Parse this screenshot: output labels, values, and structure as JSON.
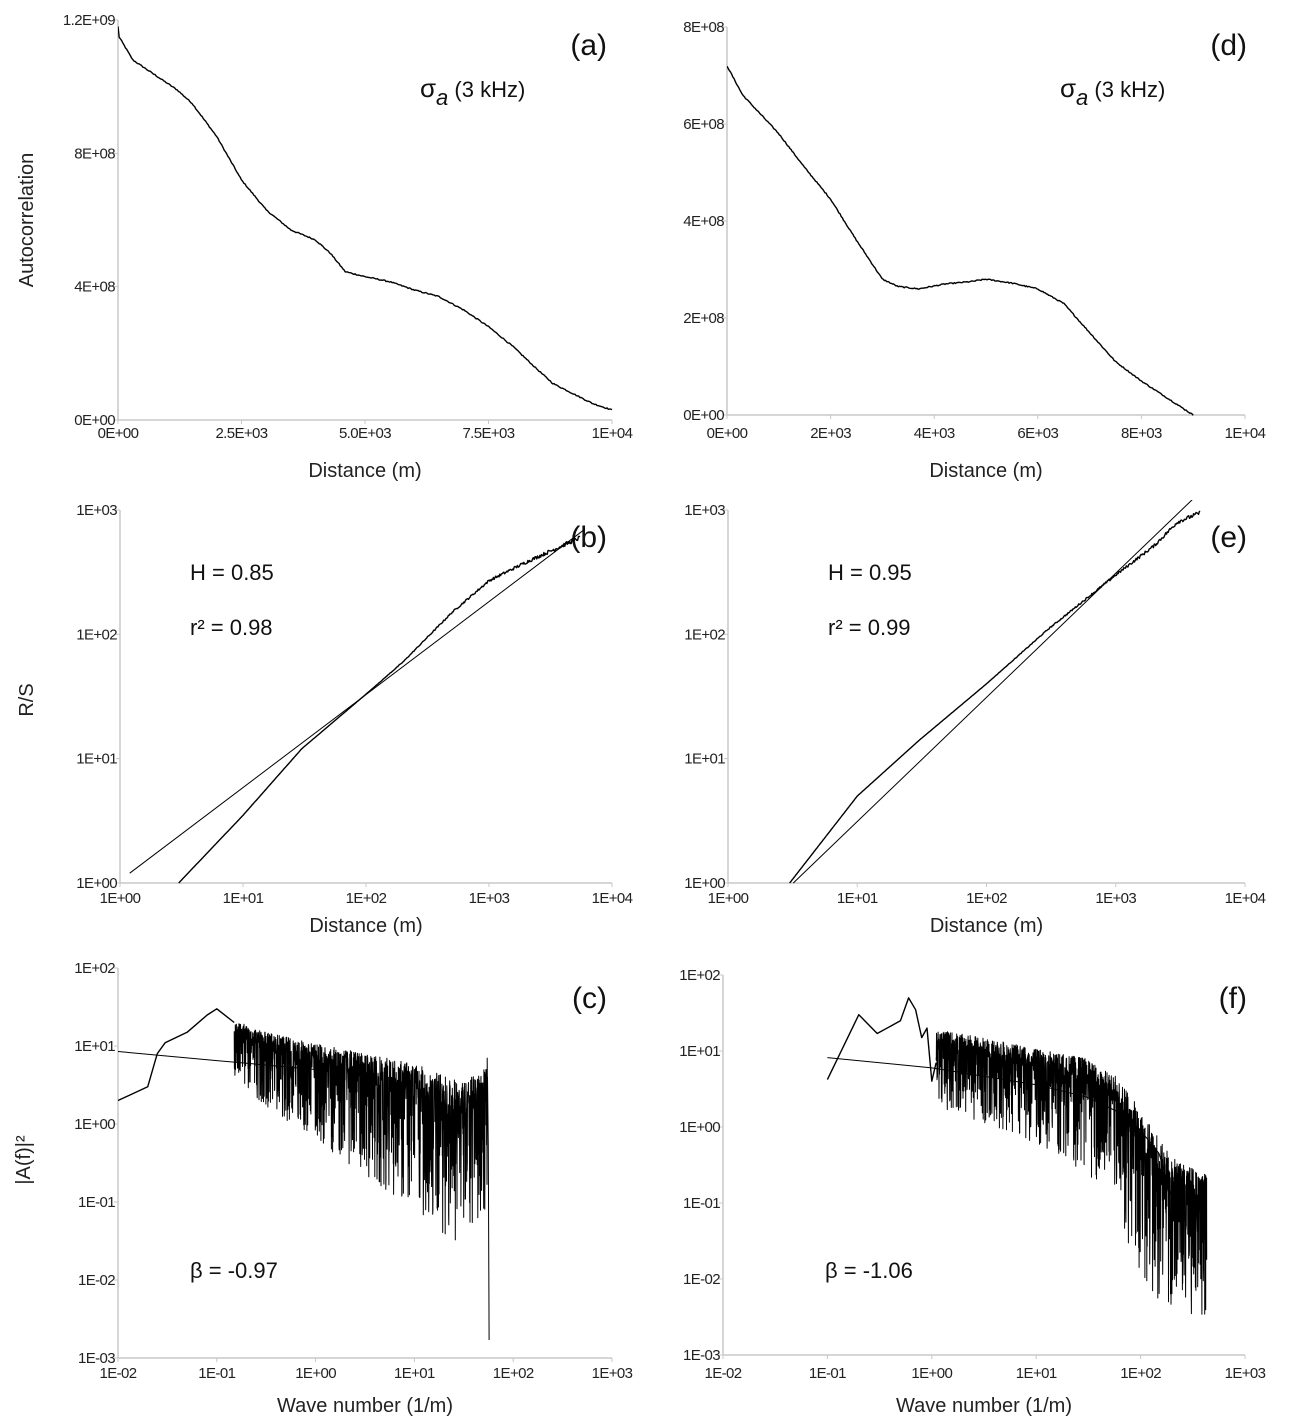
{
  "chart_data": [
    {
      "id": "a",
      "type": "line",
      "panel_label": "(a)",
      "annotation": {
        "symbol": "σ",
        "sub": "a",
        "text": " (3 kHz)"
      },
      "xlabel": "Distance (m)",
      "ylabel": "Autocorrelation",
      "xscale": "linear",
      "yscale": "linear",
      "xlim": [
        0,
        10000
      ],
      "ylim": [
        0,
        1200000000
      ],
      "xticks": [
        0,
        2500,
        5000,
        7500,
        10000
      ],
      "xtick_labels": [
        "0E+00",
        "2.5E+03",
        "5.0E+03",
        "7.5E+03",
        "1E+04"
      ],
      "yticks": [
        0,
        400000000,
        800000000,
        1200000000
      ],
      "ytick_labels": [
        "0E+00",
        "4E+08",
        "8E+08",
        "1.2E+09"
      ],
      "series": [
        {
          "name": "autocorrelation",
          "points": [
            [
              0,
              1180000000.0
            ],
            [
              20,
              1150000000.0
            ],
            [
              300,
              1080000000.0
            ],
            [
              700,
              1040000000.0
            ],
            [
              1200,
              990000000.0
            ],
            [
              1500,
              950000000.0
            ],
            [
              2000,
              850000000.0
            ],
            [
              2500,
              720000000.0
            ],
            [
              3000,
              630000000.0
            ],
            [
              3500,
              570000000.0
            ],
            [
              4000,
              540000000.0
            ],
            [
              4300,
              500000000.0
            ],
            [
              4600,
              445000000.0
            ],
            [
              5000,
              430000000.0
            ],
            [
              5500,
              415000000.0
            ],
            [
              6000,
              390000000.0
            ],
            [
              6500,
              370000000.0
            ],
            [
              7000,
              330000000.0
            ],
            [
              7500,
              280000000.0
            ],
            [
              8000,
              220000000.0
            ],
            [
              8500,
              150000000.0
            ],
            [
              8800,
              110000000.0
            ],
            [
              9200,
              80000000.0
            ],
            [
              9600,
              50000000.0
            ],
            [
              10000,
              30000000.0
            ]
          ]
        }
      ]
    },
    {
      "id": "d",
      "type": "line",
      "panel_label": "(d)",
      "annotation": {
        "symbol": "σ",
        "sub": "a",
        "text": " (3 kHz)"
      },
      "xlabel": "Distance (m)",
      "ylabel": "",
      "xscale": "linear",
      "yscale": "linear",
      "xlim": [
        0,
        10000
      ],
      "ylim": [
        0,
        800000000
      ],
      "xticks": [
        0,
        2000,
        4000,
        6000,
        8000,
        10000
      ],
      "xtick_labels": [
        "0E+00",
        "2E+03",
        "4E+03",
        "6E+03",
        "8E+03",
        "1E+04"
      ],
      "yticks": [
        0,
        200000000,
        400000000,
        600000000,
        800000000
      ],
      "ytick_labels": [
        "0E+00",
        "2E+08",
        "4E+08",
        "6E+08",
        "8E+08"
      ],
      "series": [
        {
          "name": "autocorrelation",
          "points": [
            [
              0,
              720000000.0
            ],
            [
              300,
              660000000.0
            ],
            [
              1000,
              580000000.0
            ],
            [
              1500,
              510000000.0
            ],
            [
              2000,
              445000000.0
            ],
            [
              2500,
              360000000.0
            ],
            [
              3000,
              280000000.0
            ],
            [
              3300,
              265000000.0
            ],
            [
              3700,
              260000000.0
            ],
            [
              4200,
              270000000.0
            ],
            [
              4700,
              275000000.0
            ],
            [
              5000,
              280000000.0
            ],
            [
              5500,
              272000000.0
            ],
            [
              6000,
              260000000.0
            ],
            [
              6500,
              230000000.0
            ],
            [
              7000,
              170000000.0
            ],
            [
              7500,
              110000000.0
            ],
            [
              8000,
              70000000.0
            ],
            [
              8500,
              35000000.0
            ],
            [
              9000,
              0
            ]
          ]
        }
      ]
    },
    {
      "id": "b",
      "type": "line",
      "panel_label": "(b)",
      "annotation_lines": [
        "H = 0.85",
        "r² = 0.98"
      ],
      "H": 0.85,
      "r2": 0.98,
      "xlabel": "Distance (m)",
      "ylabel": "R/S",
      "xscale": "log",
      "yscale": "log",
      "xlim": [
        1,
        10000
      ],
      "ylim": [
        1,
        1000
      ],
      "xticks": [
        1,
        10,
        100,
        1000,
        10000
      ],
      "xtick_labels": [
        "1E+00",
        "1E+01",
        "1E+02",
        "1E+03",
        "1E+04"
      ],
      "yticks": [
        1,
        10,
        100,
        1000
      ],
      "ytick_labels": [
        "1E+00",
        "1E+01",
        "1E+02",
        "1E+03"
      ],
      "series": [
        {
          "name": "R/S data",
          "jitter": true,
          "points": [
            [
              3,
              1
            ],
            [
              10,
              3.5
            ],
            [
              30,
              12
            ],
            [
              100,
              33
            ],
            [
              200,
              60
            ],
            [
              500,
              150
            ],
            [
              1000,
              270
            ],
            [
              2000,
              380
            ],
            [
              4000,
              520
            ],
            [
              5500,
              600
            ]
          ]
        },
        {
          "name": "fit",
          "points": [
            [
              1.2,
              1.2
            ],
            [
              6000,
              700
            ]
          ]
        }
      ]
    },
    {
      "id": "e",
      "type": "line",
      "panel_label": "(e)",
      "annotation_lines": [
        "H = 0.95",
        "r² = 0.99"
      ],
      "H": 0.95,
      "r2": 0.99,
      "xlabel": "Distance (m)",
      "ylabel": "",
      "xscale": "log",
      "yscale": "log",
      "xlim": [
        1,
        10000
      ],
      "ylim": [
        1,
        1000
      ],
      "xticks": [
        1,
        10,
        100,
        1000,
        10000
      ],
      "xtick_labels": [
        "1E+00",
        "1E+01",
        "1E+02",
        "1E+03",
        "1E+04"
      ],
      "yticks": [
        1,
        10,
        100,
        1000
      ],
      "ytick_labels": [
        "1E+00",
        "1E+01",
        "1E+02",
        "1E+03"
      ],
      "series": [
        {
          "name": "R/S data",
          "jitter": true,
          "points": [
            [
              3,
              1
            ],
            [
              10,
              5
            ],
            [
              30,
              14
            ],
            [
              100,
              40
            ],
            [
              300,
              110
            ],
            [
              1000,
              300
            ],
            [
              2000,
              520
            ],
            [
              3000,
              800
            ],
            [
              4500,
              950
            ]
          ]
        },
        {
          "name": "fit",
          "points": [
            [
              3.2,
              1
            ],
            [
              4200,
              1300
            ]
          ]
        }
      ]
    },
    {
      "id": "c",
      "type": "line",
      "panel_label": "(c)",
      "annotation_lines": [
        "β = -0.97"
      ],
      "beta": -0.97,
      "xlabel": "Wave  number (1/m)",
      "ylabel": "|A(f)|²",
      "xscale": "log",
      "yscale": "log",
      "xlim": [
        0.01,
        1000
      ],
      "ylim": [
        0.001,
        100
      ],
      "xticks": [
        0.01,
        0.1,
        1,
        10,
        100,
        1000
      ],
      "xtick_labels": [
        "1E-02",
        "1E-01",
        "1E+00",
        "1E+01",
        "1E+02",
        "1E+03"
      ],
      "yticks": [
        0.001,
        0.01,
        0.1,
        1,
        10,
        100
      ],
      "ytick_labels": [
        "1E-03",
        "1E-02",
        "1E-01",
        "1E+00",
        "1E+01",
        "1E+02"
      ],
      "series": [
        {
          "name": "spectrum",
          "points": [
            [
              0.01,
              2
            ],
            [
              0.02,
              3
            ],
            [
              0.025,
              8
            ],
            [
              0.03,
              11
            ],
            [
              0.05,
              15
            ],
            [
              0.08,
              25
            ],
            [
              0.1,
              30
            ],
            [
              0.15,
              20
            ]
          ]
        },
        {
          "name": "spectrum-noisy",
          "noise": {
            "x_range": [
              0.15,
              55
            ],
            "n_points": 1400,
            "envelope": [
              [
                0.15,
                15
              ],
              [
                0.3,
                10
              ],
              [
                1,
                6
              ],
              [
                3,
                4
              ],
              [
                10,
                2.5
              ],
              [
                30,
                1.3
              ],
              [
                50,
                2
              ],
              [
                55,
                4
              ]
            ],
            "spread_decades": [
              [
                0.15,
                0.6
              ],
              [
                1,
                1
              ],
              [
                10,
                1.5
              ],
              [
                30,
                1.7
              ],
              [
                55,
                1.5
              ]
            ]
          },
          "tail": [
            [
              55,
              4
            ],
            [
              56,
              0.5
            ],
            [
              57,
              0.0017
            ]
          ]
        },
        {
          "name": "fit",
          "points": [
            [
              0.01,
              8.5
            ],
            [
              0.1,
              6.5
            ],
            [
              1,
              5
            ]
          ]
        }
      ]
    },
    {
      "id": "f",
      "type": "line",
      "panel_label": "(f)",
      "annotation_lines": [
        "β = -1.06"
      ],
      "beta": -1.06,
      "xlabel": "Wave  number (1/m)",
      "ylabel": "",
      "xscale": "log",
      "yscale": "log",
      "xlim": [
        0.01,
        1000
      ],
      "ylim": [
        0.001,
        100
      ],
      "xticks": [
        0.01,
        0.1,
        1,
        10,
        100,
        1000
      ],
      "xtick_labels": [
        "1E-02",
        "1E-01",
        "1E+00",
        "1E+01",
        "1E+02",
        "1E+03"
      ],
      "yticks": [
        0.001,
        0.01,
        0.1,
        1,
        10,
        100
      ],
      "ytick_labels": [
        "1E-03",
        "1E-02",
        "1E-01",
        "1E+00",
        "1E+01",
        "1E+02"
      ],
      "series": [
        {
          "name": "spectrum",
          "points": [
            [
              0.1,
              4.2
            ],
            [
              0.2,
              30
            ],
            [
              0.3,
              17
            ],
            [
              0.5,
              25
            ],
            [
              0.6,
              50
            ],
            [
              0.7,
              35
            ],
            [
              0.8,
              15
            ],
            [
              0.9,
              20
            ],
            [
              1,
              4
            ],
            [
              1.1,
              7
            ]
          ]
        },
        {
          "name": "spectrum-noisy",
          "noise": {
            "x_range": [
              1.1,
              430
            ],
            "n_points": 1500,
            "envelope": [
              [
                1.1,
                12
              ],
              [
                3,
                9
              ],
              [
                10,
                6
              ],
              [
                30,
                4
              ],
              [
                60,
                2
              ],
              [
                100,
                0.6
              ],
              [
                200,
                0.15
              ],
              [
                430,
                0.1
              ]
            ],
            "spread_decades": [
              [
                1.1,
                0.8
              ],
              [
                10,
                1
              ],
              [
                50,
                1.3
              ],
              [
                100,
                1.8
              ],
              [
                430,
                1.5
              ]
            ]
          }
        },
        {
          "name": "fit",
          "points": [
            [
              0.1,
              8.2
            ],
            [
              1,
              6
            ],
            [
              10,
              3.6
            ],
            [
              30,
              2.5
            ],
            [
              60,
              1.6
            ],
            [
              100,
              0.9
            ],
            [
              150,
              0.45
            ],
            [
              200,
              0.12
            ]
          ]
        }
      ]
    }
  ]
}
